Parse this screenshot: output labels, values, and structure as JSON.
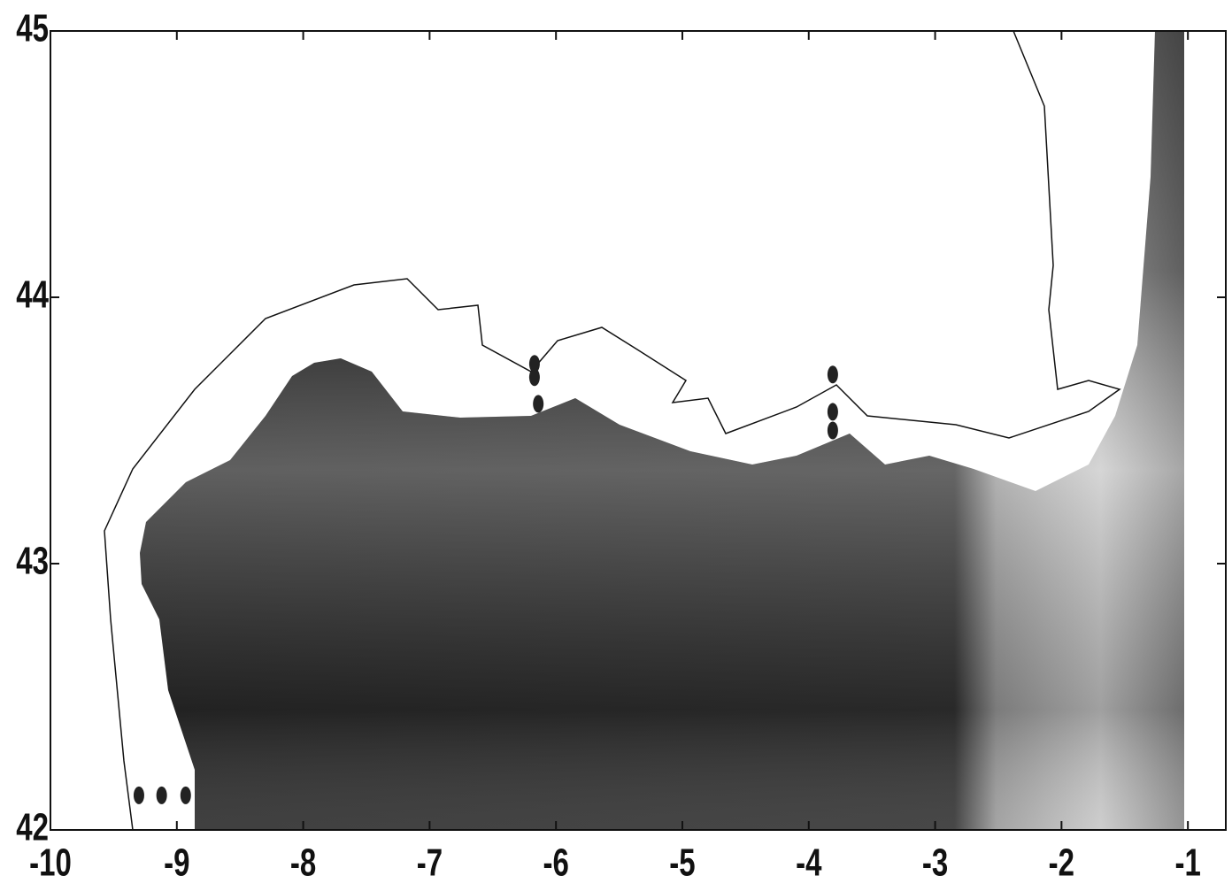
{
  "chart_data": {
    "type": "scatter",
    "xlim": [
      -10,
      -0.7
    ],
    "ylim": [
      42,
      45
    ],
    "xticks": [
      -10,
      -9,
      -8,
      -7,
      -6,
      -5,
      -4,
      -3,
      -2,
      -1
    ],
    "yticks": [
      42,
      43,
      44,
      45
    ],
    "color": "#222222",
    "x": [
      -9.3,
      -9.12,
      -8.93,
      -6.17,
      -6.17,
      -6.14,
      -3.81,
      -3.81,
      -3.81
    ],
    "values": [
      42.13,
      42.13,
      42.13,
      43.75,
      43.7,
      43.6,
      43.71,
      43.57,
      43.5
    ]
  }
}
